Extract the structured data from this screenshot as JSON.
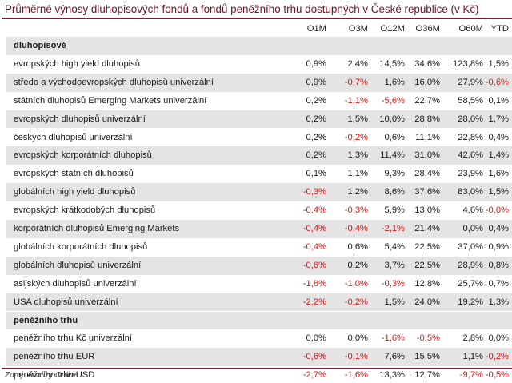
{
  "title": "Průměrné výnosy dluhopisových fondů a fondů peněžního trhu dostupných v České republice (v Kč)",
  "columns": [
    "O1M",
    "O3M",
    "O12M",
    "O36M",
    "O60M",
    "YTD"
  ],
  "sections": [
    {
      "label": "dluhopisové",
      "rows": [
        {
          "name": "evropských high yield dluhopisů",
          "values": [
            "0,9%",
            "2,4%",
            "14,5%",
            "34,6%",
            "123,8%",
            "1,5%"
          ]
        },
        {
          "name": "středo a východoevropských dluhopisů univerzální",
          "values": [
            "0,9%",
            "-0,7%",
            "1,6%",
            "16,0%",
            "27,9%",
            "-0,6%"
          ]
        },
        {
          "name": "státních dluhopisů Emerging Markets univerzální",
          "values": [
            "0,2%",
            "-1,1%",
            "-5,6%",
            "22,7%",
            "58,5%",
            "0,1%"
          ]
        },
        {
          "name": "evropských dluhopisů univerzální",
          "values": [
            "0,2%",
            "1,5%",
            "10,0%",
            "28,8%",
            "28,0%",
            "1,7%"
          ]
        },
        {
          "name": "českých dluhopisů univerzální",
          "values": [
            "0,2%",
            "-0,2%",
            "0,6%",
            "11,1%",
            "22,8%",
            "0,4%"
          ]
        },
        {
          "name": "evropských korporátních dluhopisů",
          "values": [
            "0,2%",
            "1,3%",
            "11,4%",
            "31,0%",
            "42,6%",
            "1,4%"
          ]
        },
        {
          "name": "evropských státních dluhopisů",
          "values": [
            "0,1%",
            "1,1%",
            "9,3%",
            "28,4%",
            "23,9%",
            "1,6%"
          ]
        },
        {
          "name": "globálních high yield dluhopisů",
          "values": [
            "-0,3%",
            "1,2%",
            "8,6%",
            "37,6%",
            "83,0%",
            "1,5%"
          ]
        },
        {
          "name": "evropských krátkodobých dluhopisů",
          "values": [
            "-0,4%",
            "-0,3%",
            "5,9%",
            "13,0%",
            "4,6%",
            "-0,0%"
          ]
        },
        {
          "name": "korporátních dluhopisů Emerging Markets",
          "values": [
            "-0,4%",
            "-0,4%",
            "-2,1%",
            "21,4%",
            "0,0%",
            "0,4%"
          ]
        },
        {
          "name": "globálních korporátních dluhopisů",
          "values": [
            "-0,4%",
            "0,6%",
            "5,4%",
            "22,5%",
            "37,0%",
            "0,9%"
          ]
        },
        {
          "name": "globálních dluhopisů univerzální",
          "values": [
            "-0,6%",
            "0,2%",
            "3,7%",
            "22,5%",
            "28,9%",
            "0,8%"
          ]
        },
        {
          "name": "asijských dluhopisů univerzální",
          "values": [
            "-1,8%",
            "-1,0%",
            "-0,3%",
            "12,8%",
            "25,7%",
            "0,7%"
          ]
        },
        {
          "name": "USA dluhopisů univerzální",
          "values": [
            "-2,2%",
            "-0,2%",
            "1,5%",
            "24,0%",
            "19,2%",
            "1,3%"
          ]
        }
      ]
    },
    {
      "label": "peněžního trhu",
      "rows": [
        {
          "name": "peněžního trhu Kč univerzální",
          "values": [
            "0,0%",
            "0,0%",
            "-1,6%",
            "-0,5%",
            "2,8%",
            "0,0%"
          ]
        },
        {
          "name": "peněžního trhu EUR",
          "values": [
            "-0,6%",
            "-0,1%",
            "7,6%",
            "15,5%",
            "1,1%",
            "-0,2%"
          ]
        },
        {
          "name": "peněžního trhu USD",
          "values": [
            "-2,7%",
            "-1,6%",
            "13,3%",
            "12,7%",
            "-9,7%",
            "-0,5%"
          ]
        }
      ]
    }
  ],
  "source": "Zdroj: Analizy Online",
  "colors": {
    "accent": "#7a1d33",
    "title": "#6e1327",
    "negative": "#d21a1a",
    "shade": "#e4e4e4"
  }
}
